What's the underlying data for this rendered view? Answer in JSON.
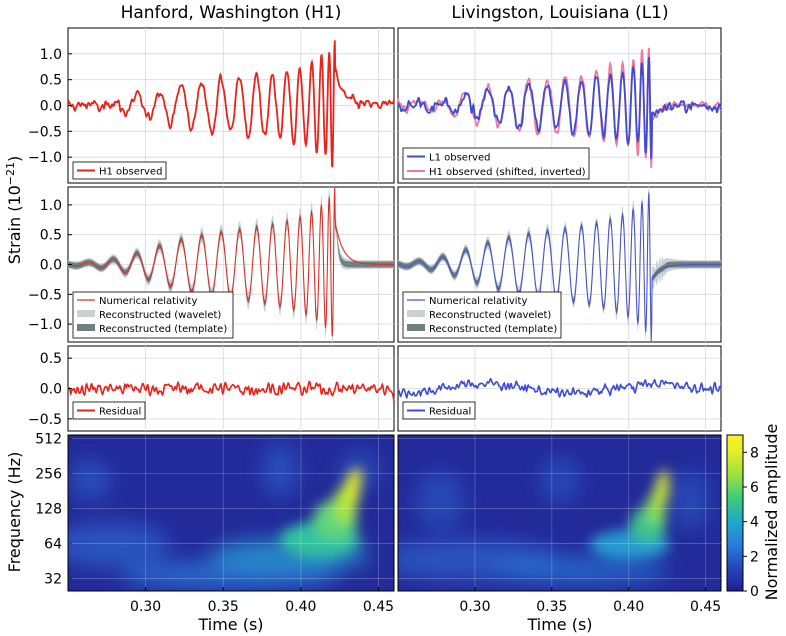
{
  "columns": [
    "Hanford, Washington (H1)",
    "Livingston, Louisiana (L1)"
  ],
  "ylabels": {
    "strain": "Strain (10",
    "strain_exp": "−21",
    "strain_close": ")",
    "frequency": "Frequency (Hz)",
    "colorbar": "Normalized amplitude"
  },
  "xlabel": "Time (s)",
  "colors": {
    "h1": "#e8231c",
    "l1": "#3f4bd1",
    "h1_shifted": "#ec7a9e",
    "wavelet_band": "#c9d2d2",
    "template_band": "#6f7f82",
    "nr_h1": "#d9312a",
    "nr_l1": "#4a55c9"
  },
  "legends": {
    "h1_observed": "H1 observed",
    "l1_observed": "L1 observed",
    "h1_shifted": "H1 observed (shifted, inverted)",
    "nr": "Numerical relativity",
    "wavelet": "Reconstructed (wavelet)",
    "template": "Reconstructed (template)",
    "residual": "Residual"
  },
  "chart_data": [
    {
      "type": "line",
      "panel": "observed-h1",
      "x_range": [
        0.25,
        0.46
      ],
      "ylim": [
        -1.5,
        1.5
      ],
      "yticks": [
        "1.0",
        "0.5",
        "0.0",
        "−0.5",
        "−1.0"
      ],
      "ytick_values": [
        1.0,
        0.5,
        0.0,
        -0.5,
        -1.0
      ],
      "series": [
        {
          "name": "H1 observed",
          "color": "#e8231c"
        }
      ]
    },
    {
      "type": "line",
      "panel": "observed-l1",
      "x_range": [
        0.25,
        0.46
      ],
      "ylim": [
        -1.5,
        1.5
      ],
      "series": [
        {
          "name": "L1 observed",
          "color": "#3f4bd1"
        },
        {
          "name": "H1 observed (shifted, inverted)",
          "color": "#ec7a9e"
        }
      ]
    },
    {
      "type": "area",
      "panel": "reconstructed-h1",
      "x_range": [
        0.25,
        0.46
      ],
      "ylim": [
        -1.3,
        1.3
      ],
      "yticks": [
        "1.0",
        "0.5",
        "0.0",
        "−0.5",
        "−1.0"
      ],
      "ytick_values": [
        1.0,
        0.5,
        0.0,
        -0.5,
        -1.0
      ],
      "series": [
        "Numerical relativity",
        "Reconstructed (wavelet)",
        "Reconstructed (template)"
      ]
    },
    {
      "type": "area",
      "panel": "reconstructed-l1",
      "x_range": [
        0.25,
        0.46
      ],
      "ylim": [
        -1.3,
        1.3
      ],
      "series": [
        "Numerical relativity",
        "Reconstructed (wavelet)",
        "Reconstructed (template)"
      ]
    },
    {
      "type": "line",
      "panel": "residual-h1",
      "x_range": [
        0.25,
        0.46
      ],
      "ylim": [
        -0.7,
        0.7
      ],
      "yticks": [
        "0.5",
        "0.0",
        "−0.5"
      ],
      "ytick_values": [
        0.5,
        0.0,
        -0.5
      ],
      "series": [
        {
          "name": "Residual",
          "color": "#e8231c"
        }
      ]
    },
    {
      "type": "line",
      "panel": "residual-l1",
      "x_range": [
        0.25,
        0.46
      ],
      "ylim": [
        -0.7,
        0.7
      ],
      "series": [
        {
          "name": "Residual",
          "color": "#3f4bd1"
        }
      ]
    },
    {
      "type": "heatmap",
      "panel": "spectrogram",
      "x_range": [
        0.25,
        0.46
      ],
      "xticks": [
        "0.30",
        "0.35",
        "0.40",
        "0.45"
      ],
      "xtick_values": [
        0.3,
        0.35,
        0.4,
        0.45
      ],
      "ylim": [
        25,
        550
      ],
      "y_scale": "log2",
      "yticks": [
        "512",
        "256",
        "128",
        "64",
        "32"
      ],
      "ytick_values": [
        512,
        256,
        128,
        64,
        32
      ],
      "colorbar": {
        "range": [
          0,
          9
        ],
        "ticks": [
          "8",
          "6",
          "4",
          "2",
          "0"
        ],
        "tick_values": [
          8,
          6,
          4,
          2,
          0
        ]
      }
    }
  ]
}
